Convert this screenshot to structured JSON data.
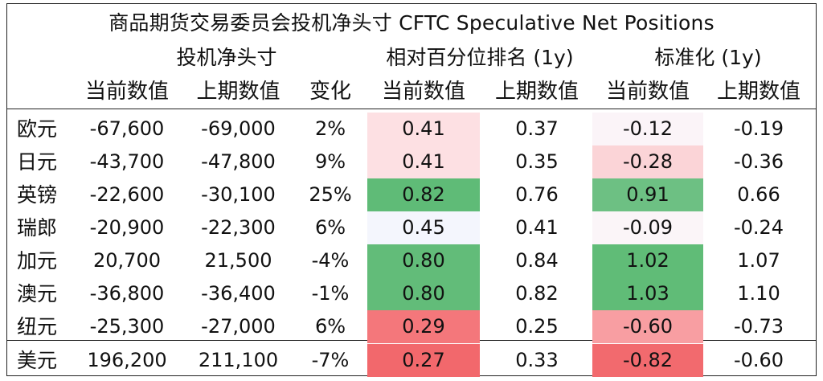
{
  "title": "商品期货交易委员会投机净头寸 CFTC Speculative Net Positions",
  "groups": {
    "net": "投机净头寸",
    "pct": "相对百分位排名 (1y)",
    "std": "标准化 (1y)"
  },
  "columns": {
    "current": "当前数值",
    "previous": "上期数值",
    "change": "变化",
    "pct_current": "当前数值",
    "pct_previous": "上期数值",
    "std_current": "当前数值",
    "std_previous": "上期数值"
  },
  "rows": [
    {
      "currency": "欧元",
      "current": "-67,600",
      "previous": "-69,000",
      "change": "2%",
      "pct_current": "0.41",
      "pct_previous": "0.37",
      "std_current": "-0.12",
      "std_previous": "-0.19",
      "pct_color": "#fde0e3",
      "std_color": "#fbf4f8"
    },
    {
      "currency": "日元",
      "current": "-43,700",
      "previous": "-47,800",
      "change": "9%",
      "pct_current": "0.41",
      "pct_previous": "0.35",
      "std_current": "-0.28",
      "std_previous": "-0.36",
      "pct_color": "#fde0e3",
      "std_color": "#fbd4d7"
    },
    {
      "currency": "英镑",
      "current": "-22,600",
      "previous": "-30,100",
      "change": "25%",
      "pct_current": "0.82",
      "pct_previous": "0.76",
      "std_current": "0.91",
      "std_previous": "0.66",
      "pct_color": "#5fbb77",
      "std_color": "#6dc083"
    },
    {
      "currency": "瑞郎",
      "current": "-20,900",
      "previous": "-22,300",
      "change": "6%",
      "pct_current": "0.45",
      "pct_previous": "0.41",
      "std_current": "-0.09",
      "std_previous": "-0.24",
      "pct_color": "#f4f6fd",
      "std_color": "#fbf5f8"
    },
    {
      "currency": "加元",
      "current": "20,700",
      "previous": "21,500",
      "change": "-4%",
      "pct_current": "0.80",
      "pct_previous": "0.84",
      "std_current": "1.02",
      "std_previous": "1.07",
      "pct_color": "#62bc79",
      "std_color": "#60bc77"
    },
    {
      "currency": "澳元",
      "current": "-36,800",
      "previous": "-36,400",
      "change": "-1%",
      "pct_current": "0.80",
      "pct_previous": "0.82",
      "std_current": "1.03",
      "std_previous": "1.10",
      "pct_color": "#62bc79",
      "std_color": "#60bc77"
    },
    {
      "currency": "纽元",
      "current": "-25,300",
      "previous": "-27,000",
      "change": "6%",
      "pct_current": "0.29",
      "pct_previous": "0.25",
      "std_current": "-0.60",
      "std_previous": "-0.73",
      "pct_color": "#f4777b",
      "std_color": "#f89ea2"
    },
    {
      "currency": "美元",
      "current": "196,200",
      "previous": "211,100",
      "change": "-7%",
      "pct_current": "0.27",
      "pct_previous": "0.33",
      "std_current": "-0.82",
      "std_previous": "-0.60",
      "pct_color": "#f2686c",
      "std_color": "#f26a6e"
    }
  ]
}
